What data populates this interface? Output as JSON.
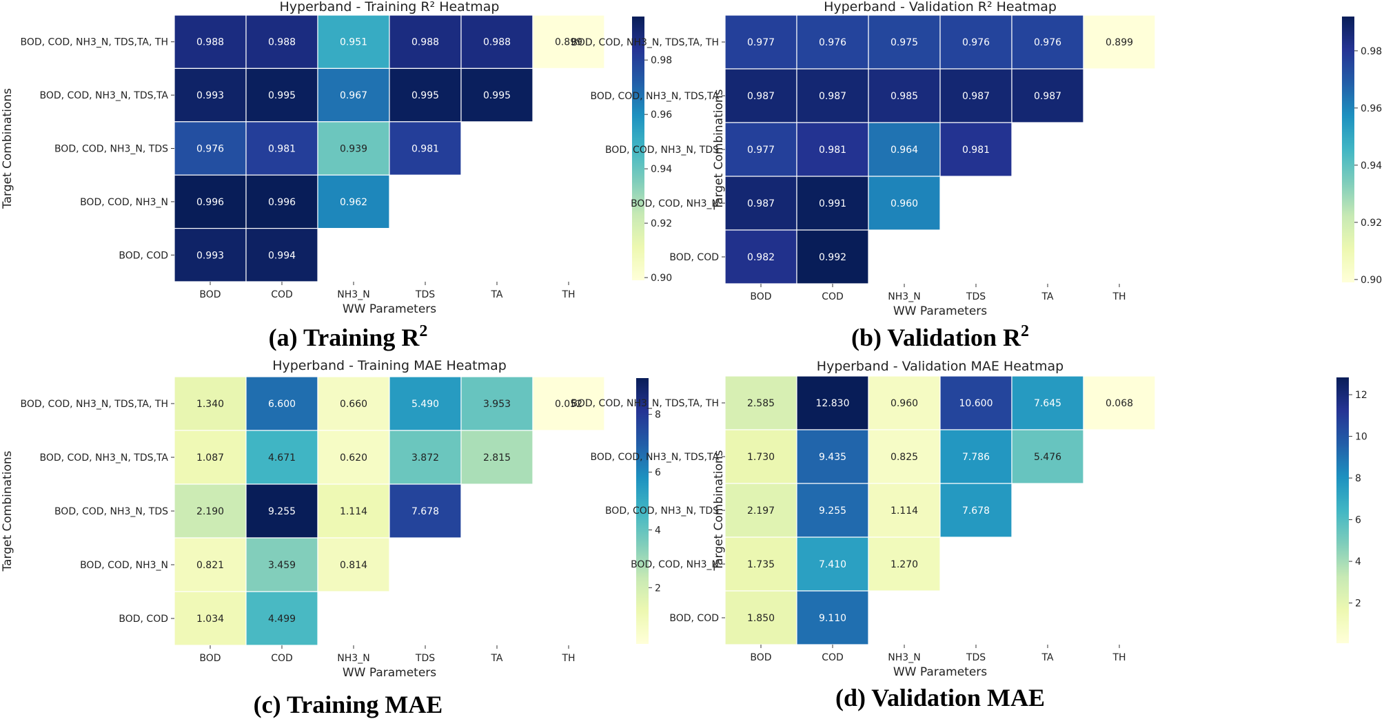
{
  "chart_data": [
    {
      "type": "heatmap",
      "title": "Hyperband - Training R²  Heatmap",
      "caption": "(a)  Training R",
      "caption_sup": "2",
      "xlabel": "WW Parameters",
      "ylabel": "Target Combinations",
      "x_categories": [
        "BOD",
        "COD",
        "NH3_N",
        "TDS",
        "TA",
        "TH"
      ],
      "y_categories": [
        "BOD, COD, NH3_N, TDS,TA, TH",
        "BOD, COD, NH3_N, TDS,TA",
        "BOD, COD, NH3_N, TDS",
        "BOD, COD, NH3_N",
        "BOD, COD"
      ],
      "values": [
        [
          0.988,
          0.988,
          0.951,
          0.988,
          0.988,
          0.899
        ],
        [
          0.993,
          0.995,
          0.967,
          0.995,
          0.995,
          null
        ],
        [
          0.976,
          0.981,
          0.939,
          0.981,
          null,
          null
        ],
        [
          0.996,
          0.996,
          0.962,
          null,
          null,
          null
        ],
        [
          0.993,
          0.994,
          null,
          null,
          null,
          null
        ]
      ],
      "labels": [
        [
          "0.988",
          "0.988",
          "0.951",
          "0.988",
          "0.988",
          "0.899"
        ],
        [
          "0.993",
          "0.995",
          "0.967",
          "0.995",
          "0.995",
          null
        ],
        [
          "0.976",
          "0.981",
          "0.939",
          "0.981",
          null,
          null
        ],
        [
          "0.996",
          "0.996",
          "0.962",
          null,
          null,
          null
        ],
        [
          "0.993",
          "0.994",
          null,
          null,
          null,
          null
        ]
      ],
      "vmin": 0.899,
      "vmax": 0.996,
      "colormap": "YlGnBu",
      "colorbar_ticks": [
        0.9,
        0.92,
        0.94,
        0.96,
        0.98
      ],
      "colorbar_tick_labels": [
        "0.90",
        "0.92",
        "0.94",
        "0.96",
        "0.98"
      ]
    },
    {
      "type": "heatmap",
      "title": "Hyperband - Validation R²  Heatmap",
      "caption": "(b)  Validation R",
      "caption_sup": "2",
      "xlabel": "WW Parameters",
      "ylabel": "Target Combinations",
      "x_categories": [
        "BOD",
        "COD",
        "NH3_N",
        "TDS",
        "TA",
        "TH"
      ],
      "y_categories": [
        "BOD, COD, NH3_N, TDS,TA, TH",
        "BOD, COD, NH3_N, TDS,TA",
        "BOD, COD, NH3_N, TDS",
        "BOD, COD, NH3_N",
        "BOD, COD"
      ],
      "values": [
        [
          0.977,
          0.976,
          0.975,
          0.976,
          0.976,
          0.899
        ],
        [
          0.987,
          0.987,
          0.985,
          0.987,
          0.987,
          null
        ],
        [
          0.977,
          0.981,
          0.964,
          0.981,
          null,
          null
        ],
        [
          0.987,
          0.991,
          0.96,
          null,
          null,
          null
        ],
        [
          0.982,
          0.992,
          null,
          null,
          null,
          null
        ]
      ],
      "labels": [
        [
          "0.977",
          "0.976",
          "0.975",
          "0.976",
          "0.976",
          "0.899"
        ],
        [
          "0.987",
          "0.987",
          "0.985",
          "0.987",
          "0.987",
          null
        ],
        [
          "0.977",
          "0.981",
          "0.964",
          "0.981",
          null,
          null
        ],
        [
          "0.987",
          "0.991",
          "0.960",
          null,
          null,
          null
        ],
        [
          "0.982",
          "0.992",
          null,
          null,
          null,
          null
        ]
      ],
      "vmin": 0.899,
      "vmax": 0.992,
      "colormap": "YlGnBu",
      "colorbar_ticks": [
        0.9,
        0.92,
        0.94,
        0.96,
        0.98
      ],
      "colorbar_tick_labels": [
        "0.90",
        "0.92",
        "0.94",
        "0.96",
        "0.98"
      ]
    },
    {
      "type": "heatmap",
      "title": "Hyperband - Training MAE Heatmap",
      "caption": "(c)  Training MAE",
      "caption_sup": "",
      "xlabel": "WW Parameters",
      "ylabel": "Target Combinations",
      "x_categories": [
        "BOD",
        "COD",
        "NH3_N",
        "TDS",
        "TA",
        "TH"
      ],
      "y_categories": [
        "BOD, COD, NH3_N, TDS,TA, TH",
        "BOD, COD, NH3_N, TDS,TA",
        "BOD, COD, NH3_N, TDS",
        "BOD, COD, NH3_N",
        "BOD, COD"
      ],
      "values": [
        [
          1.34,
          6.6,
          0.66,
          5.49,
          3.953,
          0.052
        ],
        [
          1.087,
          4.671,
          0.62,
          3.872,
          2.815,
          null
        ],
        [
          2.19,
          9.255,
          1.114,
          7.678,
          null,
          null
        ],
        [
          0.821,
          3.459,
          0.814,
          null,
          null,
          null
        ],
        [
          1.034,
          4.499,
          null,
          null,
          null,
          null
        ]
      ],
      "labels": [
        [
          "1.340",
          "6.600",
          "0.660",
          "5.490",
          "3.953",
          "0.052"
        ],
        [
          "1.087",
          "4.671",
          "0.620",
          "3.872",
          "2.815",
          null
        ],
        [
          "2.190",
          "9.255",
          "1.114",
          "7.678",
          null,
          null
        ],
        [
          "0.821",
          "3.459",
          "0.814",
          null,
          null,
          null
        ],
        [
          "1.034",
          "4.499",
          null,
          null,
          null,
          null
        ]
      ],
      "vmin": 0.052,
      "vmax": 9.255,
      "colormap": "YlGnBu",
      "colorbar_ticks": [
        2,
        4,
        6,
        8
      ],
      "colorbar_tick_labels": [
        "2",
        "4",
        "6",
        "8"
      ]
    },
    {
      "type": "heatmap",
      "title": "Hyperband - Validation MAE Heatmap",
      "caption": "(d)  Validation MAE",
      "caption_sup": "",
      "xlabel": "WW Parameters",
      "ylabel": "Target Combinations",
      "x_categories": [
        "BOD",
        "COD",
        "NH3_N",
        "TDS",
        "TA",
        "TH"
      ],
      "y_categories": [
        "BOD, COD, NH3_N, TDS,TA, TH",
        "BOD, COD, NH3_N, TDS,TA",
        "BOD, COD, NH3_N, TDS",
        "BOD, COD, NH3_N",
        "BOD, COD"
      ],
      "values": [
        [
          2.585,
          12.83,
          0.96,
          10.6,
          7.645,
          0.068
        ],
        [
          1.73,
          9.435,
          0.825,
          7.786,
          5.476,
          null
        ],
        [
          2.197,
          9.255,
          1.114,
          7.678,
          null,
          null
        ],
        [
          1.735,
          7.41,
          1.27,
          null,
          null,
          null
        ],
        [
          1.85,
          9.11,
          null,
          null,
          null,
          null
        ]
      ],
      "labels": [
        [
          "2.585",
          "12.830",
          "0.960",
          "10.600",
          "7.645",
          "0.068"
        ],
        [
          "1.730",
          "9.435",
          "0.825",
          "7.786",
          "5.476",
          null
        ],
        [
          "2.197",
          "9.255",
          "1.114",
          "7.678",
          null,
          null
        ],
        [
          "1.735",
          "7.410",
          "1.270",
          null,
          null,
          null
        ],
        [
          "1.850",
          "9.110",
          null,
          null,
          null,
          null
        ]
      ],
      "vmin": 0.068,
      "vmax": 12.83,
      "colormap": "YlGnBu",
      "colorbar_ticks": [
        2,
        4,
        6,
        8,
        10,
        12
      ],
      "colorbar_tick_labels": [
        "2",
        "4",
        "6",
        "8",
        "10",
        "12"
      ]
    }
  ]
}
